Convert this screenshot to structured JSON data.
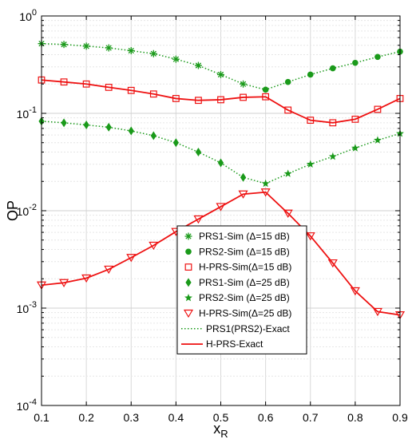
{
  "chart_data": {
    "type": "line",
    "xlabel": "x",
    "xlabel_sub": "R",
    "ylabel": "OP",
    "xlim": [
      0.1,
      0.9
    ],
    "ylim": [
      0.0001,
      1
    ],
    "yscale": "log",
    "grid": true,
    "legend_position": "center-bottom",
    "x_ticks": [
      "0.1",
      "0.2",
      "0.3",
      "0.4",
      "0.5",
      "0.6",
      "0.7",
      "0.8",
      "0.9"
    ],
    "y_tick_labels": [
      {
        "base": "10",
        "exp": "-4"
      },
      {
        "base": "10",
        "exp": "-3"
      },
      {
        "base": "10",
        "exp": "-2"
      },
      {
        "base": "10",
        "exp": "-1"
      },
      {
        "base": "10",
        "exp": "0"
      }
    ],
    "colors": {
      "green": "#1a9a1a",
      "red": "#ee1111"
    },
    "x": [
      0.1,
      0.15,
      0.2,
      0.25,
      0.3,
      0.35,
      0.4,
      0.45,
      0.5,
      0.55,
      0.6,
      0.65,
      0.7,
      0.75,
      0.8,
      0.85,
      0.9
    ],
    "series": [
      {
        "name": "PRS1-Sim (Δ=15 dB)",
        "marker": "asterisk",
        "color": "#1a9a1a",
        "x": [
          0.1,
          0.15,
          0.2,
          0.25,
          0.3,
          0.35,
          0.4,
          0.45,
          0.5,
          0.55
        ],
        "values": [
          0.52,
          0.51,
          0.49,
          0.47,
          0.44,
          0.41,
          0.36,
          0.31,
          0.25,
          0.2
        ]
      },
      {
        "name": "PRS2-Sim (Δ=15 dB)",
        "marker": "dot",
        "color": "#1a9a1a",
        "x": [
          0.6,
          0.65,
          0.7,
          0.75,
          0.8,
          0.85,
          0.9
        ],
        "values": [
          0.175,
          0.21,
          0.25,
          0.29,
          0.33,
          0.38,
          0.43
        ]
      },
      {
        "name": "H-PRS-Sim(Δ=15 dB)",
        "marker": "square",
        "color": "#ee1111",
        "x": [
          0.1,
          0.15,
          0.2,
          0.25,
          0.3,
          0.35,
          0.4,
          0.45,
          0.5,
          0.55,
          0.6,
          0.65,
          0.7,
          0.75,
          0.8,
          0.85,
          0.9
        ],
        "values": [
          0.22,
          0.21,
          0.2,
          0.185,
          0.172,
          0.158,
          0.142,
          0.136,
          0.138,
          0.146,
          0.148,
          0.108,
          0.085,
          0.08,
          0.087,
          0.11,
          0.142
        ]
      },
      {
        "name": "PRS1-Sim (Δ=25 dB)",
        "marker": "diamond",
        "color": "#1a9a1a",
        "x": [
          0.1,
          0.15,
          0.2,
          0.25,
          0.3,
          0.35,
          0.4,
          0.45,
          0.5,
          0.55
        ],
        "values": [
          0.083,
          0.08,
          0.076,
          0.072,
          0.066,
          0.059,
          0.05,
          0.04,
          0.031,
          0.022
        ]
      },
      {
        "name": "PRS2-Sim (Δ=25 dB)",
        "marker": "star",
        "color": "#1a9a1a",
        "x": [
          0.6,
          0.65,
          0.7,
          0.75,
          0.8,
          0.85,
          0.9
        ],
        "values": [
          0.019,
          0.024,
          0.03,
          0.036,
          0.044,
          0.053,
          0.062
        ]
      },
      {
        "name": "H-PRS-Sim(Δ=25 dB)",
        "marker": "triangle-down",
        "color": "#ee1111",
        "x": [
          0.1,
          0.15,
          0.2,
          0.25,
          0.3,
          0.35,
          0.4,
          0.45,
          0.5,
          0.55,
          0.6,
          0.65,
          0.7,
          0.75,
          0.8,
          0.85,
          0.9
        ],
        "values": [
          0.00172,
          0.00182,
          0.00203,
          0.0025,
          0.0033,
          0.0044,
          0.0061,
          0.0082,
          0.011,
          0.0148,
          0.0155,
          0.0094,
          0.0055,
          0.0029,
          0.0015,
          0.00092,
          0.00085
        ]
      }
    ],
    "exact_curves": [
      {
        "name": "PRS1(PRS2)-Exact",
        "style": "dotted",
        "color": "#1a9a1a",
        "curves": [
          {
            "x": [
              0.1,
              0.15,
              0.2,
              0.25,
              0.3,
              0.35,
              0.4,
              0.45,
              0.5,
              0.55,
              0.6,
              0.65,
              0.7,
              0.75,
              0.8,
              0.85,
              0.9
            ],
            "values": [
              0.52,
              0.51,
              0.49,
              0.47,
              0.44,
              0.41,
              0.36,
              0.31,
              0.25,
              0.2,
              0.175,
              0.21,
              0.25,
              0.29,
              0.33,
              0.38,
              0.43
            ]
          },
          {
            "x": [
              0.1,
              0.15,
              0.2,
              0.25,
              0.3,
              0.35,
              0.4,
              0.45,
              0.5,
              0.55,
              0.6,
              0.65,
              0.7,
              0.75,
              0.8,
              0.85,
              0.9
            ],
            "values": [
              0.083,
              0.08,
              0.076,
              0.072,
              0.066,
              0.059,
              0.05,
              0.04,
              0.031,
              0.022,
              0.019,
              0.024,
              0.03,
              0.036,
              0.044,
              0.053,
              0.062
            ]
          }
        ]
      },
      {
        "name": "H-PRS-Exact",
        "style": "solid",
        "color": "#ee1111",
        "curves": [
          {
            "x": [
              0.1,
              0.15,
              0.2,
              0.25,
              0.3,
              0.35,
              0.4,
              0.45,
              0.5,
              0.55,
              0.6,
              0.65,
              0.7,
              0.75,
              0.8,
              0.85,
              0.9
            ],
            "values": [
              0.22,
              0.21,
              0.2,
              0.185,
              0.172,
              0.158,
              0.142,
              0.136,
              0.138,
              0.146,
              0.148,
              0.108,
              0.085,
              0.08,
              0.087,
              0.11,
              0.142
            ]
          },
          {
            "x": [
              0.1,
              0.15,
              0.2,
              0.25,
              0.3,
              0.35,
              0.4,
              0.45,
              0.5,
              0.55,
              0.6,
              0.65,
              0.7,
              0.75,
              0.8,
              0.85,
              0.9
            ],
            "values": [
              0.00172,
              0.00182,
              0.00203,
              0.0025,
              0.0033,
              0.0044,
              0.0061,
              0.0082,
              0.011,
              0.0148,
              0.0155,
              0.0094,
              0.0055,
              0.0029,
              0.0015,
              0.00092,
              0.00085
            ]
          }
        ]
      }
    ],
    "legend": [
      {
        "label": "PRS1-Sim (Δ=15 dB)",
        "marker": "asterisk",
        "color": "#1a9a1a"
      },
      {
        "label": "PRS2-Sim (Δ=15 dB)",
        "marker": "dot",
        "color": "#1a9a1a"
      },
      {
        "label": "H-PRS-Sim(Δ=15 dB)",
        "marker": "square",
        "color": "#ee1111"
      },
      {
        "label": "PRS1-Sim (Δ=25 dB)",
        "marker": "diamond",
        "color": "#1a9a1a"
      },
      {
        "label": "PRS2-Sim (Δ=25 dB)",
        "marker": "star",
        "color": "#1a9a1a"
      },
      {
        "label": "H-PRS-Sim(Δ=25 dB)",
        "marker": "triangle-down",
        "color": "#ee1111"
      },
      {
        "label": "PRS1(PRS2)-Exact",
        "line": "dotted",
        "color": "#1a9a1a"
      },
      {
        "label": "H-PRS-Exact",
        "line": "solid",
        "color": "#ee1111"
      }
    ]
  }
}
